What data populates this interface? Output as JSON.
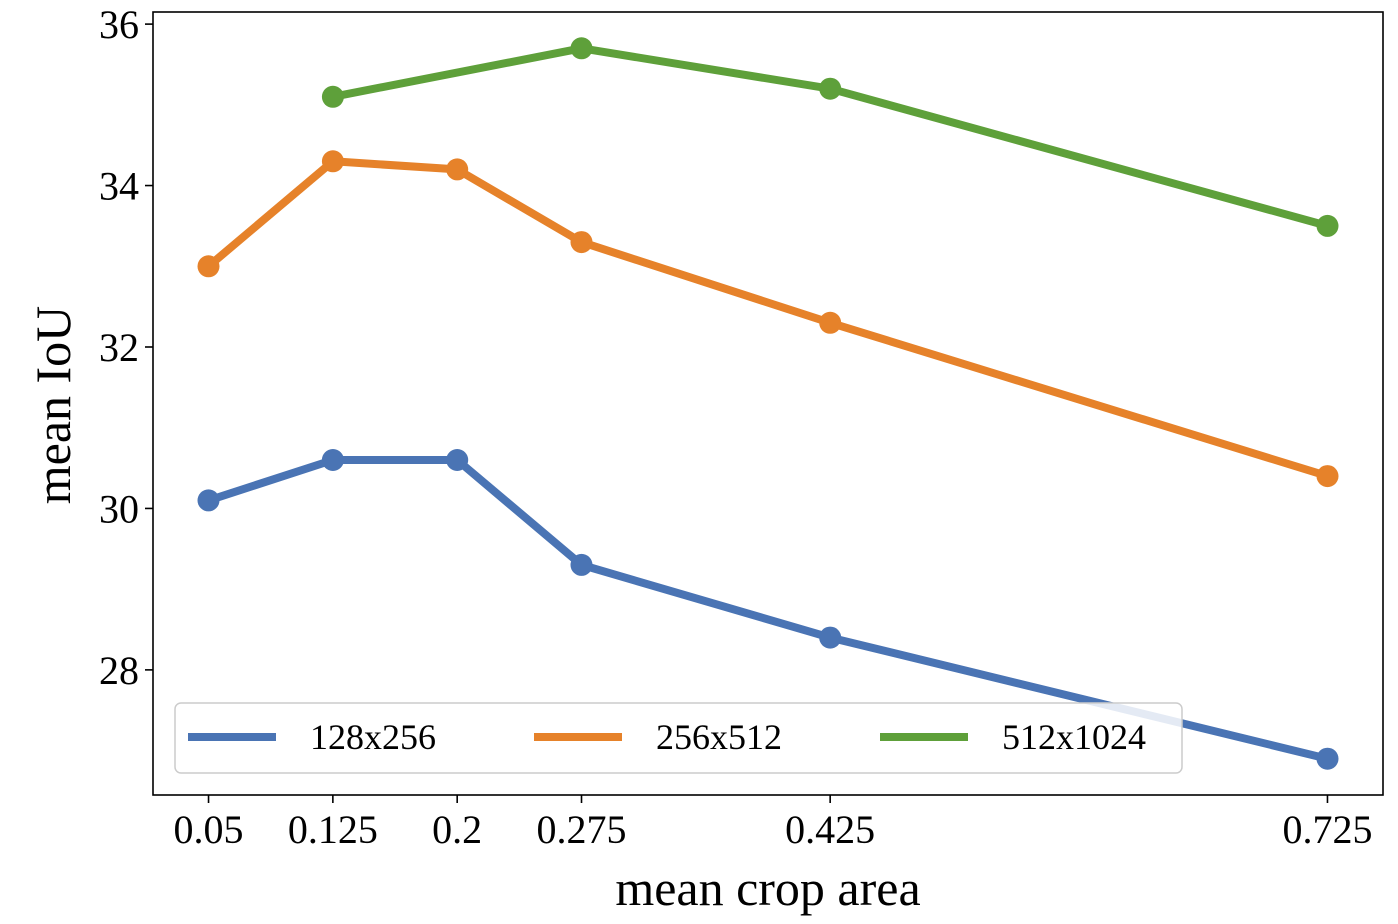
{
  "chart_data": {
    "type": "line",
    "title": "",
    "xlabel": "mean crop area",
    "ylabel": "mean IoU",
    "x": [
      0.05,
      0.125,
      0.2,
      0.275,
      0.425,
      0.725
    ],
    "xticks": [
      "0.05",
      "0.125",
      "0.2",
      "0.275",
      "0.425",
      "0.725"
    ],
    "yticks": [
      "28",
      "30",
      "32",
      "34",
      "36"
    ],
    "xlim": [
      0.0165,
      0.7585
    ],
    "ylim": [
      26.45,
      36.15
    ],
    "grid": false,
    "legend_position": "lower-left",
    "series": [
      {
        "name": "128x256",
        "color": "#4a74b4",
        "points": [
          [
            0.05,
            30.1
          ],
          [
            0.125,
            30.6
          ],
          [
            0.2,
            30.6
          ],
          [
            0.275,
            29.3
          ],
          [
            0.425,
            28.4
          ],
          [
            0.725,
            26.9
          ]
        ]
      },
      {
        "name": "256x512",
        "color": "#e6822a",
        "points": [
          [
            0.05,
            33.0
          ],
          [
            0.125,
            34.3
          ],
          [
            0.2,
            34.2
          ],
          [
            0.275,
            33.3
          ],
          [
            0.425,
            32.3
          ],
          [
            0.725,
            30.4
          ]
        ]
      },
      {
        "name": "512x1024",
        "color": "#5ea03a",
        "points": [
          [
            0.125,
            35.1
          ],
          [
            0.275,
            35.7
          ],
          [
            0.425,
            35.2
          ],
          [
            0.725,
            33.5
          ]
        ]
      }
    ]
  }
}
